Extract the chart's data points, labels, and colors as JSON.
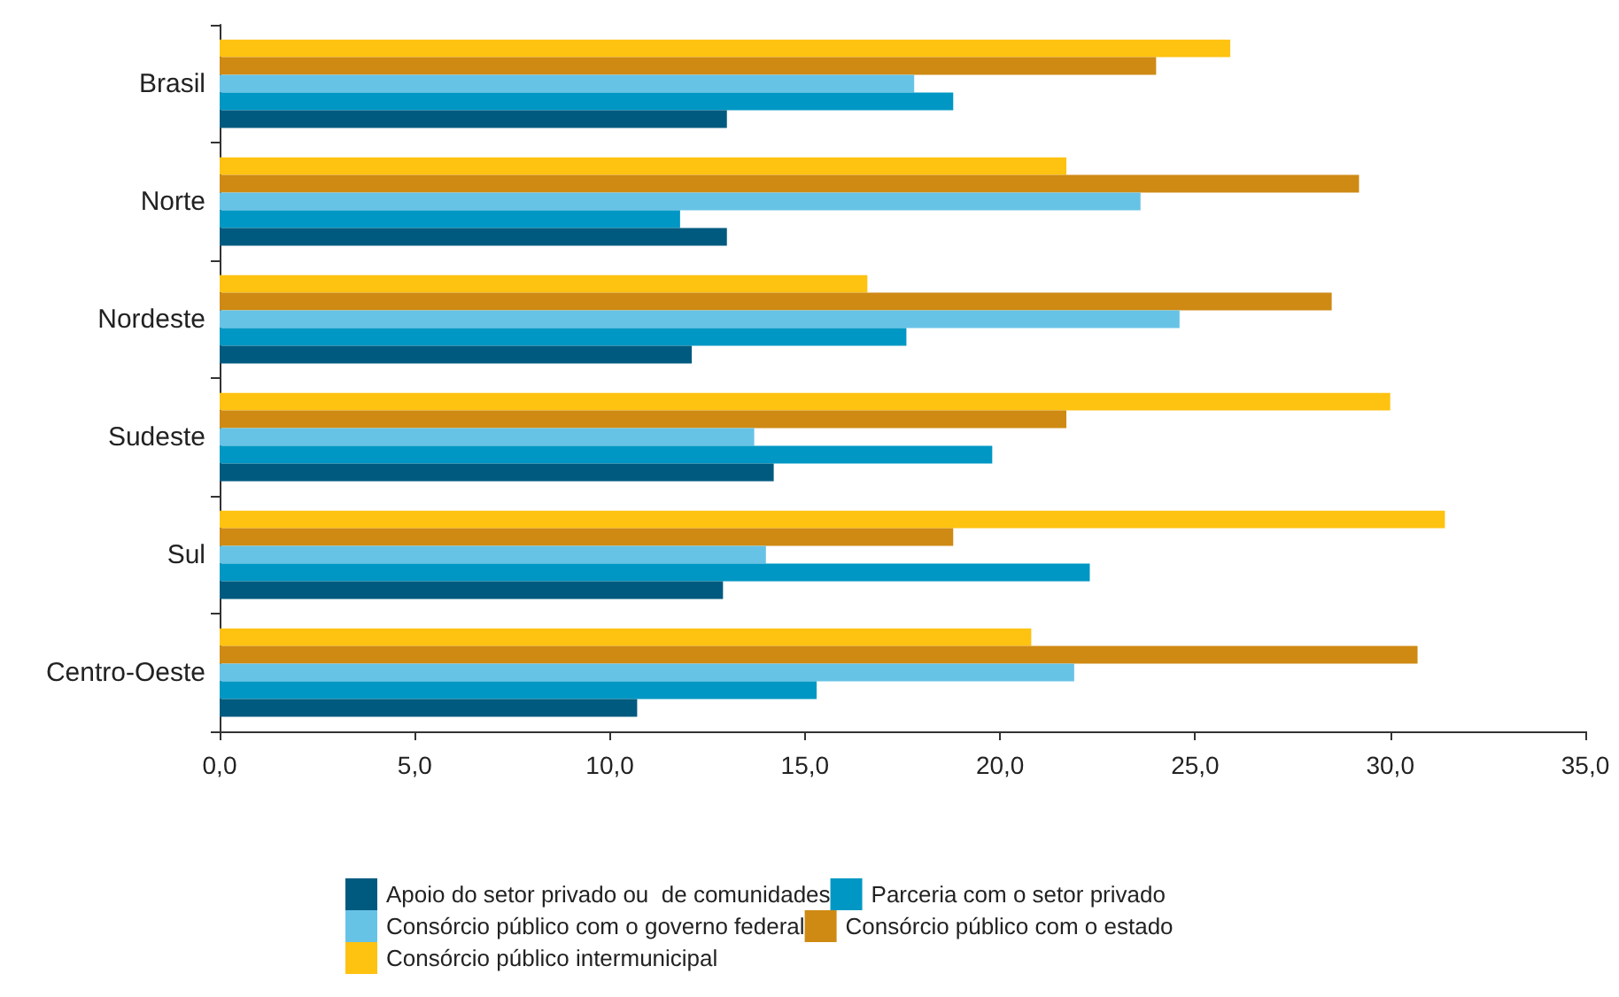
{
  "chart_data": {
    "type": "bar",
    "orientation": "horizontal",
    "categories": [
      "Brasil",
      "Norte",
      "Nordeste",
      "Sudeste",
      "Sul",
      "Centro-Oeste"
    ],
    "series": [
      {
        "name": "Apoio do setor privado ou  de comunidades",
        "color": "#005a7f",
        "values": [
          13.0,
          13.0,
          12.1,
          14.2,
          12.9,
          10.7
        ]
      },
      {
        "name": "Parceria com o setor privado",
        "color": "#0097c4",
        "values": [
          18.8,
          11.8,
          17.6,
          19.8,
          22.3,
          15.3
        ]
      },
      {
        "name": "Consórcio público com o governo federal",
        "color": "#67c3e6",
        "values": [
          17.8,
          23.6,
          24.6,
          13.7,
          14.0,
          21.9
        ]
      },
      {
        "name": "Consórcio público com o estado",
        "color": "#cf8a14",
        "values": [
          24.0,
          29.2,
          28.5,
          21.7,
          18.8,
          30.7
        ]
      },
      {
        "name": "Consórcio público intermunicipal",
        "color": "#fec210",
        "values": [
          25.9,
          21.7,
          16.6,
          30.0,
          31.4,
          20.8
        ]
      }
    ],
    "xlim": [
      0,
      35
    ],
    "xticks": [
      {
        "value": 0,
        "label": "0,0"
      },
      {
        "value": 5,
        "label": "5,0"
      },
      {
        "value": 10,
        "label": "10,0"
      },
      {
        "value": 15,
        "label": "15,0"
      },
      {
        "value": 20,
        "label": "20,0"
      },
      {
        "value": 25,
        "label": "25,0"
      },
      {
        "value": 30,
        "label": "30,0"
      },
      {
        "value": 35,
        "label": "35,0"
      }
    ],
    "grid": false,
    "legend": "bottom"
  }
}
